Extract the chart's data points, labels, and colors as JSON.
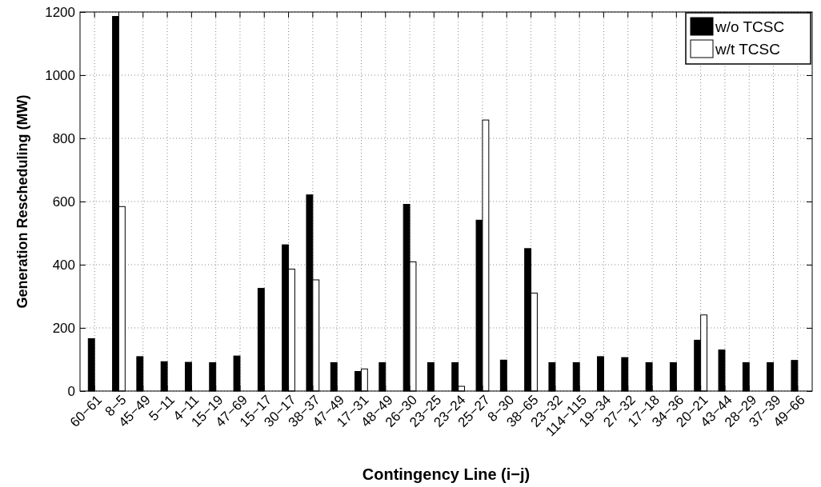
{
  "chart_data": {
    "type": "bar",
    "xlabel": "Contingency Line (i−j)",
    "ylabel": "Generation Rescheduling (MW)",
    "categories": [
      "60−61",
      "8−5",
      "45−49",
      "5−11",
      "4−11",
      "15−19",
      "47−69",
      "15−17",
      "30−17",
      "38−37",
      "47−49",
      "17−31",
      "48−49",
      "26−30",
      "23−25",
      "23−24",
      "25−27",
      "8−30",
      "38−65",
      "23−32",
      "114−115",
      "19−34",
      "27−32",
      "17−18",
      "34−36",
      "20−21",
      "43−44",
      "28−29",
      "37−39",
      "49−66"
    ],
    "series": [
      {
        "name": "w/o TCSC",
        "color": "#000000",
        "values": [
          166,
          1186,
          109,
          93,
          91,
          90,
          111,
          325,
          463,
          621,
          90,
          62,
          90,
          591,
          90,
          90,
          541,
          98,
          451,
          90,
          90,
          109,
          106,
          90,
          90,
          161,
          130,
          90,
          90,
          97
        ]
      },
      {
        "name": "w/t TCSC",
        "color": "#ffffff",
        "values": [
          null,
          584,
          null,
          null,
          null,
          null,
          null,
          null,
          386,
          352,
          null,
          70,
          null,
          409,
          null,
          15,
          858,
          null,
          310,
          null,
          null,
          null,
          null,
          null,
          null,
          241,
          null,
          null,
          null,
          null
        ]
      }
    ],
    "ylim": [
      0,
      1200
    ],
    "yticks": [
      0,
      200,
      400,
      600,
      800,
      1000,
      1200
    ],
    "grid": true,
    "legend": "top right"
  }
}
